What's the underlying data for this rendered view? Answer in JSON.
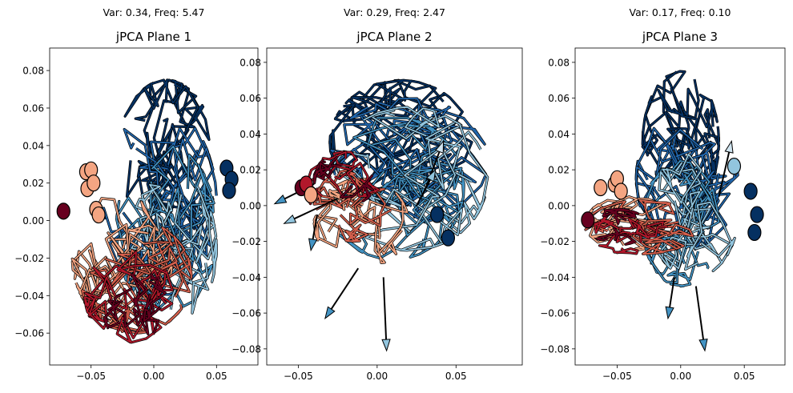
{
  "colors": {
    "red_dark": "#67001f",
    "red_mid": "#b2182b",
    "red_light": "#d6604d",
    "salmon": "#f4a582",
    "peach": "#fddbc7",
    "blue_pale": "#d1e5f0",
    "blue_light": "#92c5de",
    "blue_mid": "#4393c3",
    "blue": "#2166ac",
    "blue_dark": "#053061"
  },
  "chart_data": [
    {
      "type": "line",
      "title": "jPCA Plane 1",
      "subtitle": "Var: 0.34, Freq: 5.47",
      "xlabel": "",
      "ylabel": "",
      "xlim": [
        -0.083,
        0.083
      ],
      "ylim": [
        -0.077,
        0.092
      ],
      "xticks": [
        -0.05,
        0.0,
        0.05
      ],
      "xtick_labels": [
        "−0.05",
        "0.00",
        "0.05"
      ],
      "yticks": [
        -0.06,
        -0.04,
        -0.02,
        0.0,
        0.02,
        0.04,
        0.06,
        0.08
      ],
      "ytick_labels": [
        "−0.06",
        "−0.04",
        "−0.02",
        "0.00",
        "0.02",
        "0.04",
        "0.06",
        "0.08"
      ],
      "grid": false,
      "start_points": [
        {
          "x": -0.072,
          "y": 0.005,
          "color": "red_dark"
        },
        {
          "x": -0.054,
          "y": 0.026,
          "color": "salmon"
        },
        {
          "x": -0.05,
          "y": 0.027,
          "color": "salmon"
        },
        {
          "x": -0.053,
          "y": 0.017,
          "color": "salmon"
        },
        {
          "x": -0.048,
          "y": 0.02,
          "color": "salmon"
        },
        {
          "x": -0.046,
          "y": 0.006,
          "color": "salmon"
        },
        {
          "x": -0.044,
          "y": 0.003,
          "color": "salmon"
        },
        {
          "x": 0.058,
          "y": 0.028,
          "color": "blue_dark"
        },
        {
          "x": 0.062,
          "y": 0.022,
          "color": "blue_dark"
        },
        {
          "x": 0.06,
          "y": 0.016,
          "color": "blue_dark"
        }
      ],
      "trajectory_regions": [
        {
          "color": "blue_dark",
          "cx": 0.01,
          "cy": 0.03,
          "rx": 0.04,
          "ry": 0.045,
          "count": 10
        },
        {
          "color": "blue",
          "cx": 0.005,
          "cy": 0.01,
          "rx": 0.045,
          "ry": 0.05,
          "count": 9
        },
        {
          "color": "blue_mid",
          "cx": 0.01,
          "cy": -0.005,
          "rx": 0.04,
          "ry": 0.045,
          "count": 8
        },
        {
          "color": "blue_light",
          "cx": 0.015,
          "cy": -0.015,
          "rx": 0.035,
          "ry": 0.04,
          "count": 7
        },
        {
          "color": "salmon",
          "cx": -0.025,
          "cy": -0.02,
          "rx": 0.04,
          "ry": 0.035,
          "count": 9
        },
        {
          "color": "red_light",
          "cx": -0.015,
          "cy": -0.03,
          "rx": 0.045,
          "ry": 0.03,
          "count": 8
        },
        {
          "color": "red_mid",
          "cx": -0.02,
          "cy": -0.04,
          "rx": 0.035,
          "ry": 0.025,
          "count": 6
        },
        {
          "color": "red_dark",
          "cx": -0.01,
          "cy": -0.048,
          "rx": 0.03,
          "ry": 0.02,
          "count": 4
        }
      ],
      "arrows": []
    },
    {
      "type": "line",
      "title": "jPCA Plane 2",
      "subtitle": "Var: 0.29, Freq: 2.47",
      "xlabel": "",
      "ylabel": "",
      "xlim": [
        -0.07,
        0.092
      ],
      "ylim": [
        -0.089,
        0.088
      ],
      "xticks": [
        -0.05,
        0.0,
        0.05
      ],
      "xtick_labels": [
        "−0.05",
        "0.00",
        "0.05"
      ],
      "yticks": [
        -0.08,
        -0.06,
        -0.04,
        -0.02,
        0.0,
        0.02,
        0.04,
        0.06,
        0.08
      ],
      "ytick_labels": [
        "−0.08",
        "−0.06",
        "−0.04",
        "−0.02",
        "0.00",
        "0.02",
        "0.04",
        "0.06",
        "0.08"
      ],
      "grid": false,
      "start_points": [
        {
          "x": -0.048,
          "y": 0.01,
          "color": "red_dark"
        },
        {
          "x": -0.045,
          "y": 0.012,
          "color": "red_mid"
        },
        {
          "x": -0.042,
          "y": 0.006,
          "color": "salmon"
        },
        {
          "x": 0.038,
          "y": -0.005,
          "color": "blue_dark"
        },
        {
          "x": 0.045,
          "y": -0.018,
          "color": "blue_dark"
        }
      ],
      "trajectory_regions": [
        {
          "color": "blue_dark",
          "cx": 0.015,
          "cy": 0.035,
          "rx": 0.045,
          "ry": 0.035,
          "count": 10
        },
        {
          "color": "blue",
          "cx": 0.02,
          "cy": 0.025,
          "rx": 0.05,
          "ry": 0.035,
          "count": 9
        },
        {
          "color": "blue_mid",
          "cx": 0.01,
          "cy": 0.01,
          "rx": 0.045,
          "ry": 0.04,
          "count": 8
        },
        {
          "color": "blue_light",
          "cx": 0.02,
          "cy": 0.015,
          "rx": 0.05,
          "ry": 0.04,
          "count": 7
        },
        {
          "color": "salmon",
          "cx": -0.01,
          "cy": -0.01,
          "rx": 0.03,
          "ry": 0.025,
          "count": 6
        },
        {
          "color": "red_light",
          "cx": -0.015,
          "cy": 0.0,
          "rx": 0.025,
          "ry": 0.02,
          "count": 5
        },
        {
          "color": "red_mid",
          "cx": -0.02,
          "cy": 0.01,
          "rx": 0.025,
          "ry": 0.02,
          "count": 4
        },
        {
          "color": "red_dark",
          "cx": -0.02,
          "cy": 0.015,
          "rx": 0.02,
          "ry": 0.015,
          "count": 3
        }
      ],
      "arrows": [
        {
          "x0": -0.04,
          "y0": 0.012,
          "x1": -0.065,
          "y1": 0.001,
          "color": "blue_mid"
        },
        {
          "x0": -0.025,
          "y0": 0.004,
          "x1": -0.059,
          "y1": -0.01,
          "color": "blue_light"
        },
        {
          "x0": -0.038,
          "y0": -0.005,
          "x1": -0.042,
          "y1": -0.025,
          "color": "blue_mid"
        },
        {
          "x0": -0.012,
          "y0": -0.035,
          "x1": -0.033,
          "y1": -0.063,
          "color": "blue_mid"
        },
        {
          "x0": 0.004,
          "y0": -0.04,
          "x1": 0.006,
          "y1": -0.081,
          "color": "blue_light"
        },
        {
          "x0": 0.03,
          "y0": 0.008,
          "x1": 0.042,
          "y1": 0.036,
          "color": "blue_pale"
        },
        {
          "x0": 0.025,
          "y0": 0.0,
          "x1": 0.037,
          "y1": 0.02,
          "color": "blue_light"
        }
      ]
    },
    {
      "type": "line",
      "title": "jPCA Plane 3",
      "subtitle": "Var: 0.17, Freq: 0.10",
      "xlabel": "",
      "ylabel": "",
      "xlim": [
        -0.083,
        0.082
      ],
      "ylim": [
        -0.089,
        0.088
      ],
      "xticks": [
        -0.05,
        0.0,
        0.05
      ],
      "xtick_labels": [
        "−0.05",
        "0.00",
        "0.05"
      ],
      "yticks": [
        -0.08,
        -0.06,
        -0.04,
        -0.02,
        0.0,
        0.02,
        0.04,
        0.06,
        0.08
      ],
      "ytick_labels": [
        "−0.08",
        "−0.06",
        "−0.04",
        "−0.02",
        "0.00",
        "0.02",
        "0.04",
        "0.06",
        "0.08"
      ],
      "grid": false,
      "start_points": [
        {
          "x": -0.073,
          "y": -0.008,
          "color": "red_dark"
        },
        {
          "x": -0.063,
          "y": 0.01,
          "color": "salmon"
        },
        {
          "x": -0.052,
          "y": 0.012,
          "color": "salmon"
        },
        {
          "x": -0.05,
          "y": 0.015,
          "color": "salmon"
        },
        {
          "x": -0.047,
          "y": 0.008,
          "color": "salmon"
        },
        {
          "x": 0.042,
          "y": 0.022,
          "color": "blue_light"
        },
        {
          "x": 0.055,
          "y": 0.008,
          "color": "blue_dark"
        },
        {
          "x": 0.06,
          "y": -0.005,
          "color": "blue_dark"
        },
        {
          "x": 0.058,
          "y": -0.015,
          "color": "blue_dark"
        }
      ],
      "trajectory_regions": [
        {
          "color": "blue_dark",
          "cx": 0.0,
          "cy": 0.035,
          "rx": 0.03,
          "ry": 0.04,
          "count": 10
        },
        {
          "color": "blue",
          "cx": 0.005,
          "cy": 0.015,
          "rx": 0.04,
          "ry": 0.04,
          "count": 9
        },
        {
          "color": "blue_mid",
          "cx": 0.0,
          "cy": -0.01,
          "rx": 0.03,
          "ry": 0.035,
          "count": 8
        },
        {
          "color": "blue_light",
          "cx": 0.01,
          "cy": -0.005,
          "rx": 0.035,
          "ry": 0.035,
          "count": 6
        },
        {
          "color": "salmon",
          "cx": -0.04,
          "cy": -0.01,
          "rx": 0.035,
          "ry": 0.015,
          "count": 6
        },
        {
          "color": "red_light",
          "cx": -0.03,
          "cy": -0.012,
          "rx": 0.045,
          "ry": 0.015,
          "count": 6
        },
        {
          "color": "red_mid",
          "cx": -0.04,
          "cy": -0.015,
          "rx": 0.03,
          "ry": 0.012,
          "count": 4
        },
        {
          "color": "red_dark",
          "cx": -0.05,
          "cy": -0.012,
          "rx": 0.025,
          "ry": 0.01,
          "count": 3
        }
      ],
      "arrows": [
        {
          "x0": -0.005,
          "y0": -0.04,
          "x1": -0.01,
          "y1": -0.063,
          "color": "blue_mid"
        },
        {
          "x0": 0.012,
          "y0": -0.045,
          "x1": 0.019,
          "y1": -0.081,
          "color": "blue_mid"
        },
        {
          "x0": 0.03,
          "y0": 0.005,
          "x1": 0.04,
          "y1": 0.036,
          "color": "blue_pale"
        }
      ]
    }
  ]
}
